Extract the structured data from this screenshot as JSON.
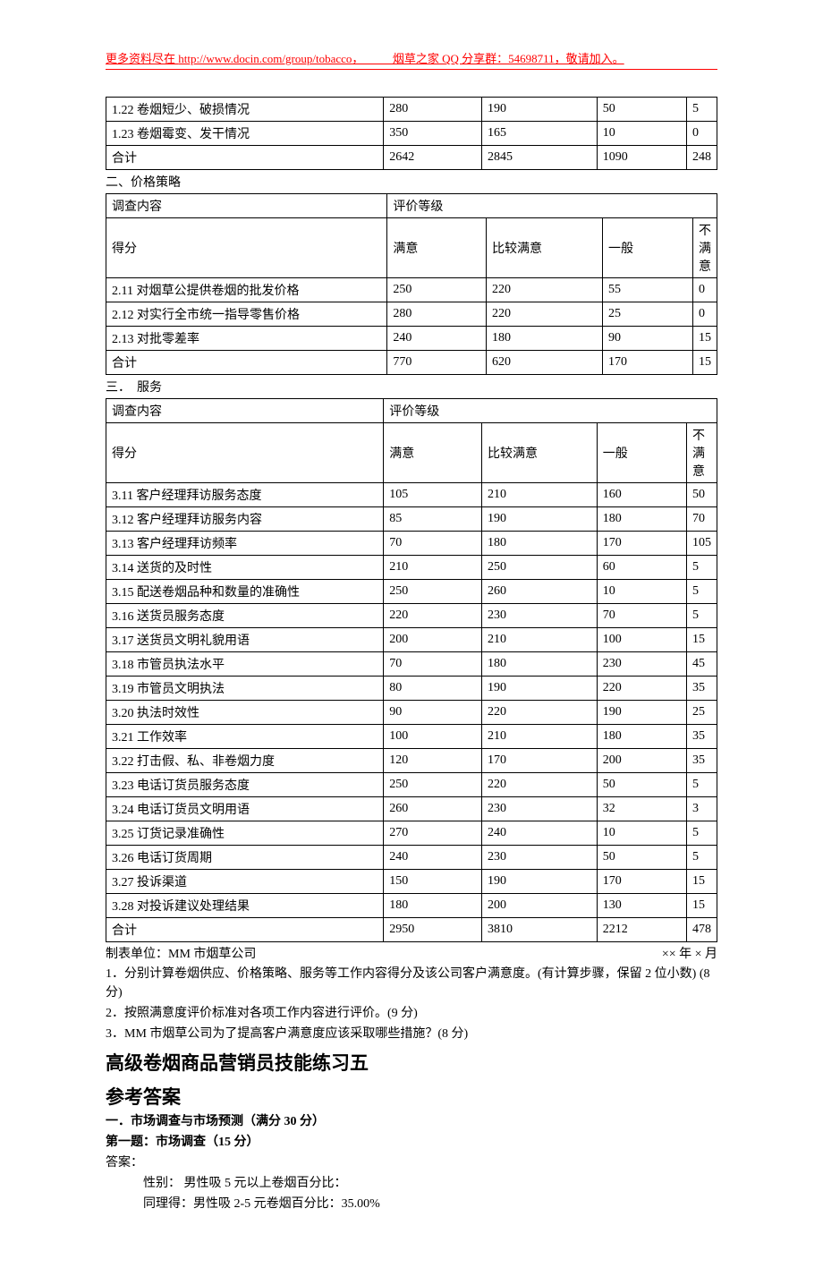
{
  "header": {
    "text_prefix": "更多资料尽在 ",
    "url": "http://www.docin.com/group/tobacco",
    "text_mid": "，　　　烟草之家 QQ 分享群：54698711，敬请加入。"
  },
  "table1": {
    "rows": [
      [
        "1.22 卷烟短少、破损情况",
        "280",
        "190",
        "50",
        "5"
      ],
      [
        "1.23 卷烟霉变、发干情况",
        "350",
        "165",
        "10",
        "0"
      ],
      [
        "合计",
        "2642",
        "2845",
        "1090",
        "248"
      ]
    ]
  },
  "section2": {
    "title": "二、价格策略",
    "header1": [
      "调查内容",
      "评价等级"
    ],
    "header2": [
      "得分",
      "满意",
      "比较满意",
      "一般",
      "不满意"
    ],
    "rows": [
      [
        "2.11 对烟草公提供卷烟的批发价格",
        "250",
        "220",
        "55",
        "0"
      ],
      [
        "2.12 对实行全市统一指导零售价格",
        "280",
        "220",
        "25",
        "0"
      ],
      [
        "2.13 对批零差率",
        "240",
        "180",
        "90",
        "15"
      ],
      [
        "合计",
        "770",
        "620",
        "170",
        "15"
      ]
    ]
  },
  "section3": {
    "title": "三．　服务",
    "header1": [
      "调查内容",
      "评价等级"
    ],
    "header2": [
      "得分",
      "满意",
      "比较满意",
      "一般",
      "不满意"
    ],
    "rows": [
      [
        "3.11 客户经理拜访服务态度",
        "105",
        "210",
        "160",
        "50"
      ],
      [
        "3.12 客户经理拜访服务内容",
        "85",
        "190",
        "180",
        "70"
      ],
      [
        "3.13 客户经理拜访频率",
        "70",
        "180",
        "170",
        "105"
      ],
      [
        "3.14 送货的及时性",
        "210",
        "250",
        "60",
        "5"
      ],
      [
        "3.15 配送卷烟品种和数量的准确性",
        "250",
        "260",
        "10",
        "5"
      ],
      [
        "3.16 送货员服务态度",
        "220",
        "230",
        "70",
        "5"
      ],
      [
        "3.17 送货员文明礼貌用语",
        "200",
        "210",
        "100",
        "15"
      ],
      [
        "3.18 市管员执法水平",
        "70",
        "180",
        "230",
        "45"
      ],
      [
        "3.19 市管员文明执法",
        "80",
        "190",
        "220",
        "35"
      ],
      [
        "3.20 执法时效性",
        "90",
        "220",
        "190",
        "25"
      ],
      [
        "3.21 工作效率",
        "100",
        "210",
        "180",
        "35"
      ],
      [
        "3.22 打击假、私、非卷烟力度",
        "120",
        "170",
        "200",
        "35"
      ],
      [
        "3.23 电话订货员服务态度",
        "250",
        "220",
        "50",
        "5"
      ],
      [
        "3.24 电话订货员文明用语",
        "260",
        "230",
        "32",
        "3"
      ],
      [
        "3.25 订货记录准确性",
        "270",
        "240",
        "10",
        "5"
      ],
      [
        "3.26 电话订货周期",
        "240",
        "230",
        "50",
        "5"
      ],
      [
        "3.27 投诉渠道",
        "150",
        "190",
        "170",
        "15"
      ],
      [
        "3.28 对投诉建议处理结果",
        "180",
        "200",
        "130",
        "15"
      ],
      [
        "合计",
        "2950",
        "3810",
        "2212",
        "478"
      ]
    ]
  },
  "footer": {
    "left": "制表单位：MM 市烟草公司",
    "right": "×× 年 × 月"
  },
  "questions": [
    "1．分别计算卷烟供应、价格策略、服务等工作内容得分及该公司客户满意度。(有计算步骤，保留 2 位小数) (8 分)",
    "2．按照满意度评价标准对各项工作内容进行评价。(9 分)",
    "3．MM 市烟草公司为了提高客户满意度应该采取哪些措施？(8 分)"
  ],
  "headings": {
    "h1": "高级卷烟商品营销员技能练习五",
    "h2": "参考答案",
    "h3": "一．市场调查与市场预测（满分 30 分）",
    "h4": "第一题：市场调查（15 分）"
  },
  "answers": {
    "label": "答案：",
    "line1": "性别：  男性吸 5 元以上卷烟百分比：",
    "line2": "同理得：男性吸 2-5 元卷烟百分比：35.00%"
  },
  "colors": {
    "header_color": "#ff0000",
    "border_color": "#000000",
    "text_color": "#000000",
    "background": "#ffffff"
  }
}
